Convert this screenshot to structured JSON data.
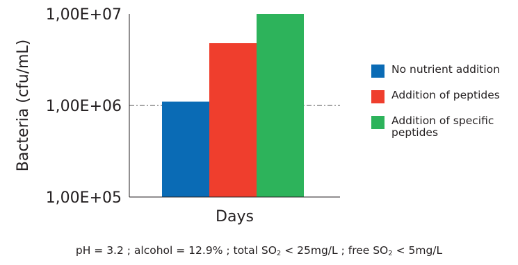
{
  "chart_data": {
    "type": "bar",
    "categories": [
      "Days"
    ],
    "series": [
      {
        "name": "No nutrient addition",
        "values": [
          1100000
        ],
        "color": "#0a6bb5"
      },
      {
        "name": "Addition of peptides",
        "values": [
          4800000
        ],
        "color": "#ef3e2d"
      },
      {
        "name": "Addition of specific peptides",
        "values": [
          10000000
        ],
        "color": "#2db35b"
      }
    ],
    "ylabel": "Bacteria (cfu/mL)",
    "xlabel": "Days",
    "yscale": "log",
    "ylim": [
      100000,
      10000000
    ],
    "yticks": [
      100000,
      1000000,
      10000000
    ],
    "ytick_labels": [
      "1,00E+05",
      "1,00E+06",
      "1,00E+07"
    ],
    "reference_line": {
      "value": 1000000,
      "style": "dash-dot",
      "color": "#4d4d4d"
    },
    "legend_position": "right",
    "grid": false
  },
  "legend": {
    "items": [
      {
        "label": "No nutrient addition",
        "color": "#0a6bb5"
      },
      {
        "label": "Addition of peptides",
        "color": "#ef3e2d"
      },
      {
        "label": "Addition of specific peptides",
        "color": "#2db35b"
      }
    ]
  },
  "footnote": {
    "part1": "pH = 3.2 ; alcohol = 12.9% ; total SO",
    "sub1": "2",
    "part2": " < 25mg/L ; free SO",
    "sub2": "2",
    "part3": " < 5mg/L"
  }
}
